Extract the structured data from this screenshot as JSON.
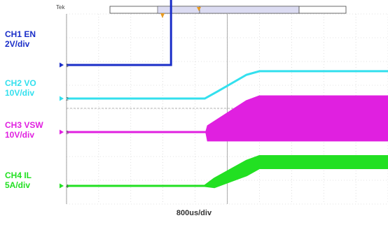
{
  "chart_data": {
    "type": "line",
    "title": "",
    "xlabel": "800us/div",
    "x_divisions": 10,
    "x_range_div": [
      0,
      10
    ],
    "grid": true,
    "instrument_label": "Tek",
    "series": [
      {
        "name": "CH1 EN",
        "scale": "2V/div",
        "color": "#1a2ec8",
        "marker": "1",
        "type": "trace",
        "points": [
          [
            0,
            0.0
          ],
          [
            3.25,
            0.0
          ],
          [
            3.25,
            3.2
          ],
          [
            10,
            3.2
          ]
        ]
      },
      {
        "name": "CH2 VO",
        "scale": "10V/div",
        "color": "#33e0ee",
        "marker": "2",
        "type": "trace",
        "points": [
          [
            0,
            0.0
          ],
          [
            4.3,
            0.0
          ],
          [
            4.7,
            0.3
          ],
          [
            5.6,
            1.0
          ],
          [
            6.0,
            1.15
          ],
          [
            10,
            1.15
          ]
        ]
      },
      {
        "name": "CH3 VSW",
        "scale": "10V/div",
        "color": "#e020e0",
        "marker": "3",
        "type": "envelope",
        "points": [
          [
            0,
            0.0,
            0.0
          ],
          [
            4.35,
            0.0,
            0.0
          ],
          [
            4.4,
            -0.35,
            0.25
          ],
          [
            5.6,
            -0.35,
            1.3
          ],
          [
            6.0,
            -0.35,
            1.5
          ],
          [
            10,
            -0.35,
            1.5
          ]
        ]
      },
      {
        "name": "CH4 IL",
        "scale": "5A/div",
        "color": "#22e022",
        "marker": "4",
        "type": "envelope",
        "points": [
          [
            0,
            0.0,
            0.0
          ],
          [
            4.3,
            0.0,
            0.0
          ],
          [
            4.6,
            -0.05,
            0.3
          ],
          [
            5.6,
            0.45,
            1.05
          ],
          [
            6.0,
            0.75,
            1.25
          ],
          [
            10,
            0.75,
            1.25
          ]
        ]
      }
    ]
  }
}
